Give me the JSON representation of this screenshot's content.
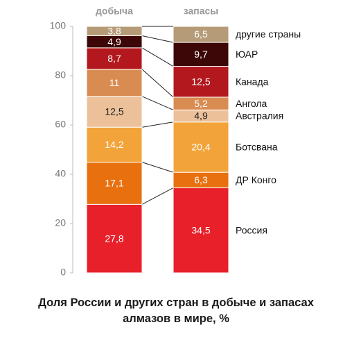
{
  "chart_data": {
    "type": "stacked_bar",
    "title": "Доля России и других стран в добыче и запасах алмазов в мире, %",
    "categories": [
      "добыча",
      "запасы"
    ],
    "ylim": [
      0,
      100
    ],
    "yticks": [
      0,
      20,
      40,
      60,
      80,
      100
    ],
    "series": [
      {
        "name": "Россия",
        "color": "#e8202a",
        "values": [
          27.8,
          34.5
        ],
        "value_labels": [
          "27,8",
          "34,5"
        ]
      },
      {
        "name": "ДР Конго",
        "color": "#e8700f",
        "values": [
          17.1,
          6.3
        ],
        "value_labels": [
          "17,1",
          "6,3"
        ]
      },
      {
        "name": "Ботсвана",
        "color": "#f2a43a",
        "values": [
          14.2,
          20.4
        ],
        "value_labels": [
          "14,2",
          "20,4"
        ]
      },
      {
        "name": "Австралия",
        "color": "#ecc19a",
        "values": [
          12.5,
          4.9
        ],
        "value_labels": [
          "12,5",
          "4,9"
        ]
      },
      {
        "name": "Ангола",
        "color": "#d98c52",
        "values": [
          11,
          5.2
        ],
        "value_labels": [
          "11",
          "5,2"
        ]
      },
      {
        "name": "Канада",
        "color": "#b2181d",
        "values": [
          8.7,
          12.5
        ],
        "value_labels": [
          "8,7",
          "12,5"
        ]
      },
      {
        "name": "ЮАР",
        "color": "#3e0707",
        "values": [
          4.9,
          9.7
        ],
        "value_labels": [
          "4,9",
          "9,7"
        ]
      },
      {
        "name": "другие страны",
        "color": "#b69b78",
        "values": [
          3.8,
          6.5
        ],
        "value_labels": [
          "3,8",
          "6,5"
        ]
      }
    ]
  }
}
